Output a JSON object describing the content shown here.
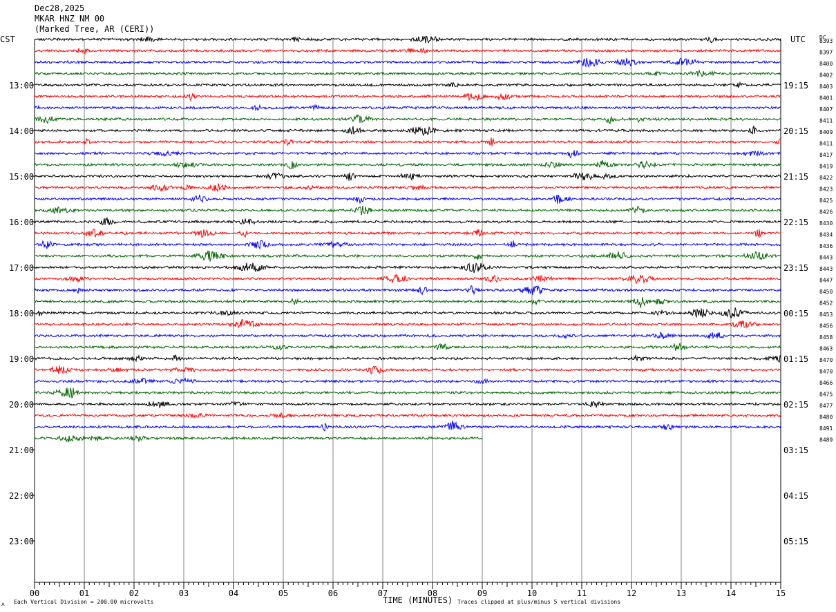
{
  "header": {
    "date": "Dec28,2025",
    "station": "MKAR HNZ NM 00",
    "location": "(Marked Tree, AR (CERI))"
  },
  "left_axis_label": "CST",
  "right_axis_label": "UTC",
  "dc_label": "DC",
  "footer": {
    "scale_note": "Each Vertical Division =  200.00 microvolts",
    "xlabel": "TIME (MINUTES)",
    "clip_note": "Traces clipped at plus/minus 5 vertical divisions",
    "corner_mark": "ᴧ"
  },
  "colors": {
    "trace_cycle": [
      "#000000",
      "#ff0000",
      "#0000ff",
      "#006400"
    ],
    "grid": "#808080",
    "axis": "#000000"
  },
  "chart_data": {
    "type": "line",
    "title": "",
    "xlabel": "TIME (MINUTES)",
    "xlim": [
      0,
      15
    ],
    "x_ticks": [
      "00",
      "01",
      "02",
      "03",
      "04",
      "05",
      "06",
      "07",
      "08",
      "09",
      "10",
      "11",
      "12",
      "13",
      "14",
      "15"
    ],
    "row_count": 48,
    "rows_per_hour": 4,
    "row_minutes": 15,
    "grid": true,
    "left_hour_labels": [
      "13:00",
      "14:00",
      "15:00",
      "16:00",
      "17:00",
      "18:00",
      "19:00",
      "20:00",
      "21:00",
      "22:00",
      "23:00"
    ],
    "right_hour_labels": [
      "19:15",
      "20:15",
      "21:15",
      "22:15",
      "23:15",
      "00:15",
      "01:15",
      "02:15",
      "03:15",
      "04:15",
      "05:15"
    ],
    "first_labeled_row": 4,
    "trace_count": 36,
    "last_trace_end_minute": 9,
    "dc_offsets": [
      "8393",
      "8397",
      "8400",
      "8402",
      "8403",
      "8401",
      "8407",
      "8411",
      "8409",
      "8411",
      "8417",
      "8419",
      "8422",
      "8423",
      "8425",
      "8426",
      "8430",
      "8434",
      "8436",
      "8443",
      "8443",
      "8447",
      "8450",
      "8452",
      "8453",
      "8456",
      "8458",
      "8463",
      "8470",
      "8470",
      "8466",
      "8475",
      "8477",
      "8480",
      "8491",
      "8489"
    ]
  }
}
